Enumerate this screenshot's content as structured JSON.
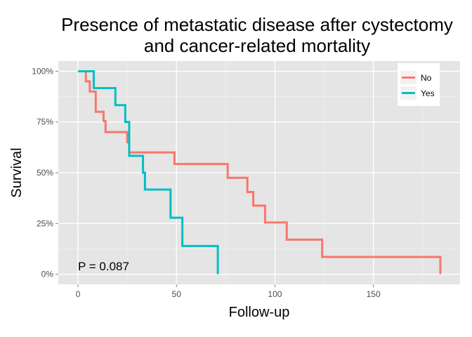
{
  "chart_data": {
    "type": "line",
    "subtype": "kaplan-meier step",
    "title_line1": "Presence of metastatic disease after cystectomy",
    "title_line2": "and cancer-related mortality",
    "xlabel": "Follow-up",
    "ylabel": "Survival",
    "xlim": [
      -10,
      194
    ],
    "ylim": [
      -0.05,
      1.05
    ],
    "x_ticks": [
      0,
      50,
      100,
      150
    ],
    "x_tick_labels": [
      "0",
      "50",
      "100",
      "150"
    ],
    "y_ticks": [
      0,
      0.25,
      0.5,
      0.75,
      1.0
    ],
    "y_tick_labels": [
      "0%",
      "25%",
      "50%",
      "75%",
      "100%"
    ],
    "grid": true,
    "legend_position": "top-right",
    "annotation": "P = 0.087",
    "series": [
      {
        "name": "No",
        "color": "#F8766D",
        "steps": [
          [
            0,
            1.0
          ],
          [
            4,
            0.95
          ],
          [
            6,
            0.9
          ],
          [
            9,
            0.8
          ],
          [
            13,
            0.755
          ],
          [
            14,
            0.7
          ],
          [
            25,
            0.65
          ],
          [
            26,
            0.6
          ],
          [
            49,
            0.543
          ],
          [
            76,
            0.475
          ],
          [
            86,
            0.405
          ],
          [
            89,
            0.338
          ],
          [
            95,
            0.255
          ],
          [
            106,
            0.17
          ],
          [
            124,
            0.085
          ],
          [
            184,
            0.0
          ]
        ]
      },
      {
        "name": "Yes",
        "color": "#00BFC4",
        "steps": [
          [
            0,
            1.0
          ],
          [
            8,
            0.917
          ],
          [
            19,
            0.833
          ],
          [
            24,
            0.75
          ],
          [
            26,
            0.583
          ],
          [
            33,
            0.5
          ],
          [
            34,
            0.417
          ],
          [
            47,
            0.278
          ],
          [
            53,
            0.139
          ],
          [
            71,
            0.0
          ]
        ]
      }
    ]
  }
}
